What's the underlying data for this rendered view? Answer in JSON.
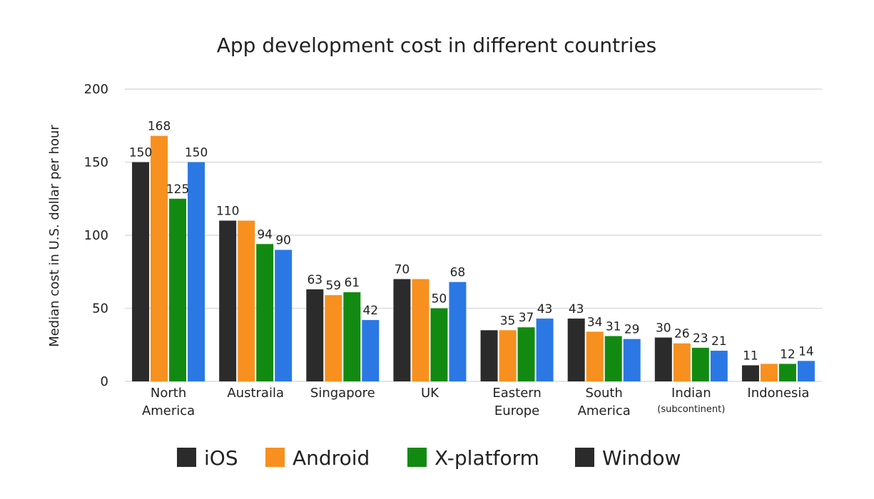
{
  "chart_data": {
    "type": "bar",
    "title": "App development cost in different countries",
    "xlabel": "",
    "ylabel": "Median cost in U.S. dollar per hour",
    "ylim": [
      0,
      200
    ],
    "yticks": [
      0,
      50,
      100,
      150,
      200
    ],
    "grid": true,
    "legend_position": "bottom",
    "categories": [
      {
        "lines": [
          "North",
          "America"
        ],
        "sub": ""
      },
      {
        "lines": [
          "Austraila"
        ],
        "sub": ""
      },
      {
        "lines": [
          "Singapore"
        ],
        "sub": ""
      },
      {
        "lines": [
          "UK"
        ],
        "sub": ""
      },
      {
        "lines": [
          "Eastern",
          "Europe"
        ],
        "sub": ""
      },
      {
        "lines": [
          "South",
          "America"
        ],
        "sub": ""
      },
      {
        "lines": [
          "Indian"
        ],
        "sub": "(subcontinent)"
      },
      {
        "lines": [
          "Indonesia"
        ],
        "sub": ""
      }
    ],
    "series": [
      {
        "name": "iOS",
        "color": "#2b2b2b",
        "values": [
          150,
          110,
          63,
          70,
          35,
          43,
          30,
          11
        ]
      },
      {
        "name": "Android",
        "color": "#f7901e",
        "values": [
          168,
          110,
          59,
          70,
          35,
          34,
          26,
          12
        ]
      },
      {
        "name": "X-platform",
        "color": "#128a12",
        "values": [
          125,
          94,
          61,
          50,
          37,
          31,
          23,
          12
        ]
      },
      {
        "name": "Window",
        "color": "#2b78e4",
        "legend_color": "#2b2b2b",
        "values": [
          150,
          90,
          42,
          68,
          43,
          29,
          21,
          14
        ]
      }
    ],
    "data_labels": [
      [
        "150",
        "168",
        "125",
        "150"
      ],
      [
        "110",
        "",
        "94",
        "90"
      ],
      [
        "63",
        "59",
        "61",
        "42"
      ],
      [
        "70",
        "",
        "50",
        "68"
      ],
      [
        "",
        "35",
        "37",
        "43"
      ],
      [
        "43",
        "34",
        "31",
        "29"
      ],
      [
        "30",
        "26",
        "23",
        "21"
      ],
      [
        "11",
        "",
        "12",
        "14"
      ]
    ]
  }
}
